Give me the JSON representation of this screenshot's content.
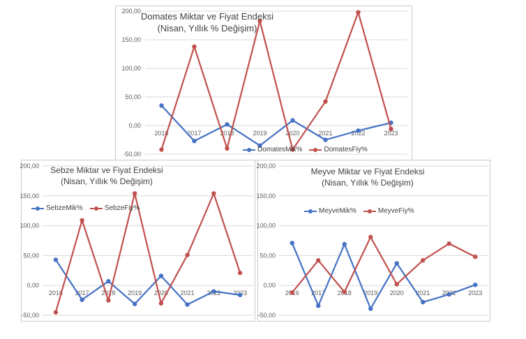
{
  "colors": {
    "mik": "#4472C4",
    "fiy": "#C0504D",
    "grid": "#d9d9d9",
    "text": "#595959"
  },
  "chart_data": [
    {
      "type": "line",
      "title": "Domates Miktar ve Fiyat Endeksi",
      "subtitle": "(Nisan, Yıllık % Değişim)",
      "categories": [
        "2016",
        "2017",
        "2018",
        "2019",
        "2020",
        "2021",
        "2022",
        "2023"
      ],
      "y_ticks": [
        "200,00",
        "150,00",
        "100,00",
        "50,00",
        "0,00",
        "-50,00"
      ],
      "ylim": [
        -50,
        200
      ],
      "grid": true,
      "legend_position": "bottom",
      "series": [
        {
          "name": "DomatesMik%",
          "color": "#4472C4",
          "values": [
            35,
            -27,
            2,
            -35,
            9,
            -25,
            -9,
            5
          ]
        },
        {
          "name": "DomatesFiy%",
          "color": "#C0504D",
          "values": [
            -42,
            138,
            -40,
            183,
            -42,
            42,
            198,
            -6
          ]
        }
      ]
    },
    {
      "type": "line",
      "title": "Sebze Miktar ve Fiyat Endeksi",
      "subtitle": "(Nisan, Yıllık % Değişim)",
      "categories": [
        "2016",
        "2017",
        "2018",
        "2019",
        "2020",
        "2021",
        "2022",
        "2023"
      ],
      "y_ticks": [
        "200,00",
        "150,00",
        "100,00",
        "50,00",
        "0,00",
        "-50,00"
      ],
      "ylim": [
        -50,
        200
      ],
      "grid": true,
      "legend_position": "top-left",
      "series": [
        {
          "name": "SebzeMik%",
          "color": "#4472C4",
          "values": [
            43,
            -24,
            7,
            -31,
            16,
            -32,
            -10,
            -16
          ]
        },
        {
          "name": "SebzeFiy%",
          "color": "#C0504D",
          "values": [
            -45,
            109,
            -25,
            154,
            -30,
            51,
            154,
            21
          ]
        }
      ]
    },
    {
      "type": "line",
      "title": "Meyve Miktar ve Fiyat Endeksi",
      "subtitle": "(Nisan, Yıllık % Değişim)",
      "categories": [
        "2016",
        "2017",
        "2018",
        "2019",
        "2020",
        "2021",
        "2022",
        "2023"
      ],
      "y_ticks": [
        "200,00",
        "150,00",
        "100,00",
        "50,00",
        "0,00",
        "-50,00"
      ],
      "ylim": [
        -50,
        200
      ],
      "grid": true,
      "legend_position": "top-center",
      "series": [
        {
          "name": "MeyveMik%",
          "color": "#4472C4",
          "values": [
            71,
            -34,
            69,
            -39,
            37,
            -28,
            -15,
            1
          ]
        },
        {
          "name": "MeyveFiy%",
          "color": "#C0504D",
          "values": [
            -12,
            42,
            -11,
            81,
            2,
            42,
            70,
            48
          ]
        }
      ]
    }
  ]
}
